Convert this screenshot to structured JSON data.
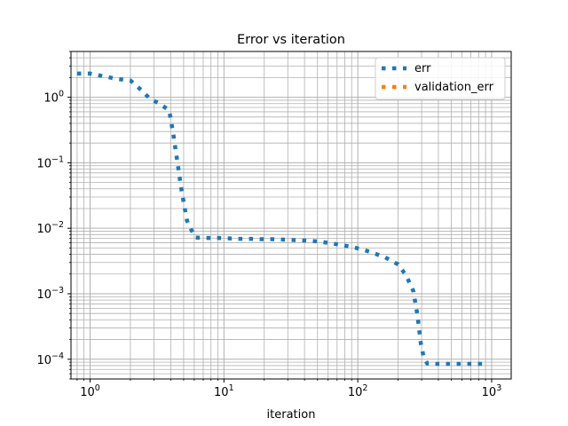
{
  "chart_data": {
    "type": "line",
    "title": "Error vs iteration",
    "xlabel": "iteration",
    "ylabel": "",
    "xscale": "log",
    "yscale": "log",
    "xlim": [
      0.72,
      1400
    ],
    "ylim": [
      5e-05,
      5
    ],
    "grid": "major and minor",
    "legend_position": "top-right",
    "x_ticks": [
      {
        "value": 1,
        "base": "10",
        "exp": "0"
      },
      {
        "value": 10,
        "base": "10",
        "exp": "1"
      },
      {
        "value": 100,
        "base": "10",
        "exp": "2"
      },
      {
        "value": 1000,
        "base": "10",
        "exp": "3"
      }
    ],
    "y_ticks": [
      {
        "value": 0.0001,
        "base": "10",
        "exp": "−4"
      },
      {
        "value": 0.001,
        "base": "10",
        "exp": "−3"
      },
      {
        "value": 0.01,
        "base": "10",
        "exp": "−2"
      },
      {
        "value": 0.1,
        "base": "10",
        "exp": "−1"
      },
      {
        "value": 1,
        "base": "10",
        "exp": "0"
      }
    ],
    "series": [
      {
        "name": "err",
        "color": "#1f77b4",
        "linestyle": "dotted",
        "x": [
          0.8,
          1.0,
          1.25,
          1.6,
          2.0,
          2.4,
          2.8,
          3.3,
          3.9,
          4.2,
          4.5,
          4.8,
          5.0,
          5.3,
          5.7,
          6.1,
          7.4,
          9.0,
          11.0,
          13.0,
          15.8,
          19.0,
          23.0,
          28.0,
          34.0,
          41.0,
          50.0,
          60.0,
          73.0,
          90.0,
          110.0,
          130.0,
          160.0,
          200.0,
          230.0,
          260.0,
          280.0,
          295.0,
          310.0,
          330.0,
          360.0,
          440.0,
          530.0,
          650.0,
          790.0,
          900.0
        ],
        "y": [
          2.3,
          2.3,
          2.1,
          1.9,
          1.8,
          1.3,
          0.95,
          0.8,
          0.63,
          0.26,
          0.1,
          0.04,
          0.025,
          0.013,
          0.0095,
          0.0072,
          0.0071,
          0.0071,
          0.007,
          0.0069,
          0.0069,
          0.0068,
          0.0068,
          0.0067,
          0.0066,
          0.0065,
          0.0063,
          0.006,
          0.0056,
          0.0052,
          0.0047,
          0.0042,
          0.0036,
          0.0028,
          0.0019,
          0.0011,
          0.00045,
          0.00018,
          0.00011,
          8.6e-05,
          8.5e-05,
          8.5e-05,
          8.5e-05,
          8.5e-05,
          8.5e-05,
          8.5e-05
        ]
      },
      {
        "name": "validation_err",
        "color": "#ff7f0e",
        "linestyle": "dotted",
        "x": [],
        "y": []
      }
    ]
  }
}
